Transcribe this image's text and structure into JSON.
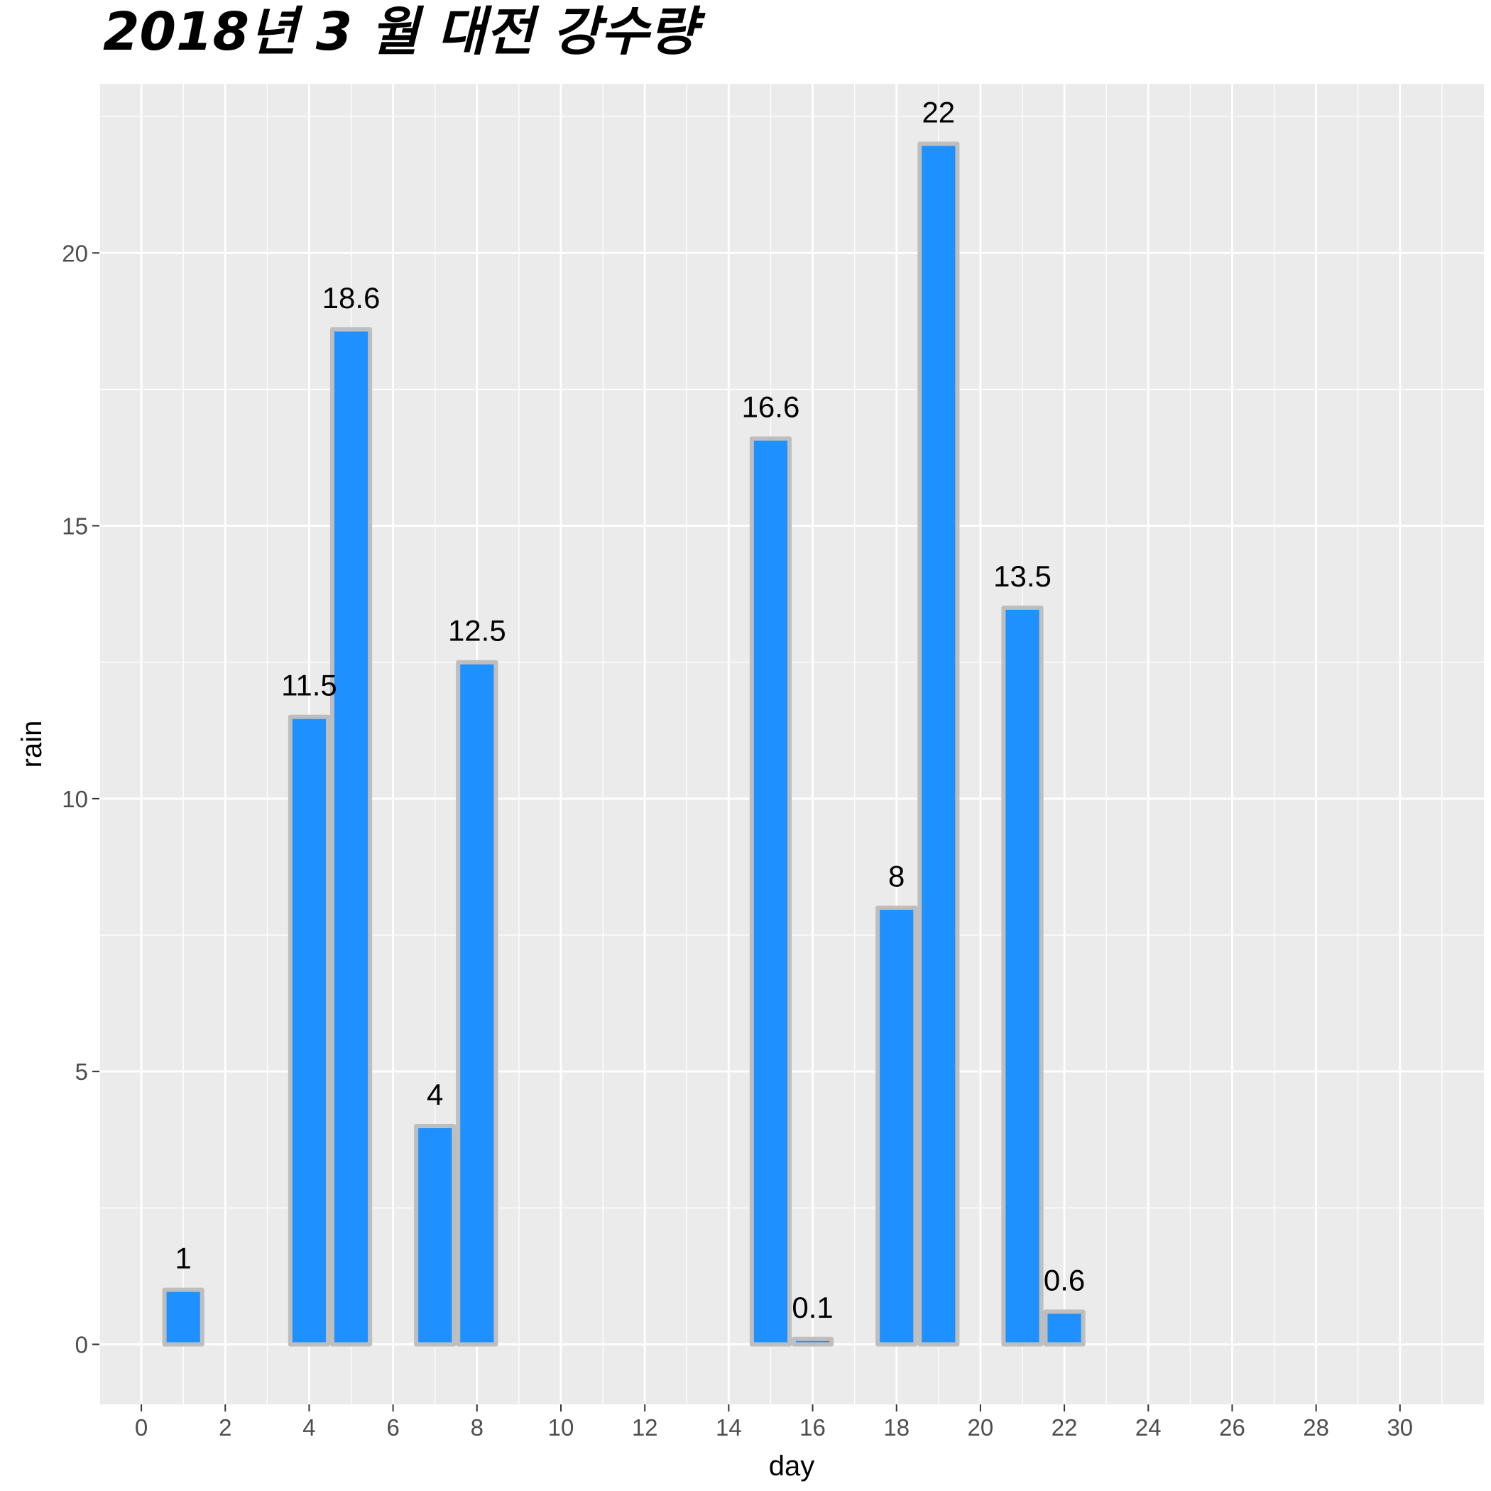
{
  "chart_data": {
    "type": "bar",
    "title": "2018년 3 월 대전 강수량",
    "xlabel": "day",
    "ylabel": "rain",
    "xlim": [
      -1,
      32
    ],
    "ylim": [
      -1.1,
      23.1
    ],
    "x_ticks": [
      0,
      2,
      4,
      6,
      8,
      10,
      12,
      14,
      16,
      18,
      20,
      22,
      24,
      26,
      28,
      30
    ],
    "y_ticks": [
      0,
      5,
      10,
      15,
      20
    ],
    "grid": true,
    "bar_fill": "#1E90FF",
    "bar_outline": "#BEBEBE",
    "panel_background": "#EBEBEB",
    "gridline_color": "#FFFFFF",
    "points": [
      {
        "day": 1,
        "rain": 1,
        "label": "1"
      },
      {
        "day": 4,
        "rain": 11.5,
        "label": "11.5"
      },
      {
        "day": 5,
        "rain": 18.6,
        "label": "18.6"
      },
      {
        "day": 7,
        "rain": 4,
        "label": "4"
      },
      {
        "day": 8,
        "rain": 12.5,
        "label": "12.5"
      },
      {
        "day": 15,
        "rain": 16.6,
        "label": "16.6"
      },
      {
        "day": 16,
        "rain": 0.1,
        "label": "0.1"
      },
      {
        "day": 18,
        "rain": 8,
        "label": "8"
      },
      {
        "day": 19,
        "rain": 22,
        "label": "22"
      },
      {
        "day": 21,
        "rain": 13.5,
        "label": "13.5"
      },
      {
        "day": 22,
        "rain": 0.6,
        "label": "0.6"
      }
    ]
  }
}
